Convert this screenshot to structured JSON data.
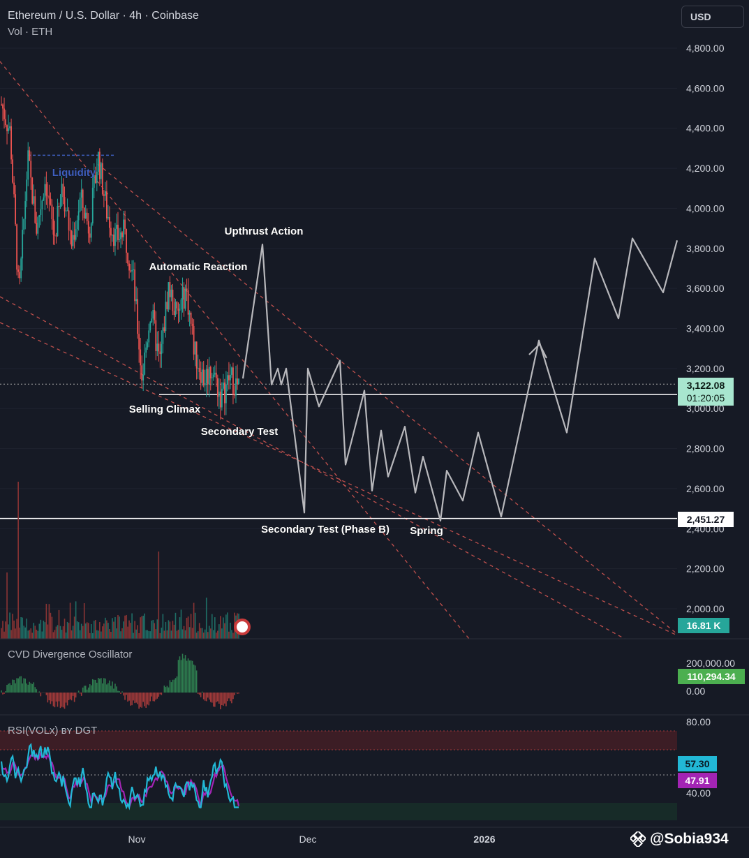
{
  "header": {
    "title": "Ethereum / U.S. Dollar · 4h · Coinbase",
    "subtitle": "Vol · ETH",
    "currency_button": "USD"
  },
  "watermark": {
    "handle": "@Sobia934"
  },
  "colors": {
    "background": "#161a25",
    "up": "#26a69a",
    "down": "#ef5350",
    "projection": "#b8b8bc",
    "channel": "#c0504d",
    "liquidity": "#3f5fbf",
    "rsi_fast": "#22b8d6",
    "rsi_slow": "#a324b4",
    "cvd_label": "#4caf50"
  },
  "chart_data": [
    {
      "type": "candlestick",
      "title": "Ethereum / U.S. Dollar · 4h · Coinbase",
      "ylabel": "USD",
      "ylim": [
        1950,
        4900
      ],
      "y_ticks": [
        2000,
        2200,
        2400,
        2600,
        2800,
        3000,
        3200,
        3400,
        3600,
        3800,
        4000,
        4200,
        4400,
        4600,
        4800
      ],
      "y_tick_labels": [
        "2,000.00",
        "2,200.00",
        "2,400.00",
        "2,600.00",
        "2,800.00",
        "3,000.00",
        "3,200.00",
        "3,400.00",
        "3,600.00",
        "3,800.00",
        "4,000.00",
        "4,200.00",
        "4,400.00",
        "4,600.00",
        "4,800.00"
      ],
      "x_ticks": [
        "Nov",
        "Dec",
        "2026"
      ],
      "price_path": [
        4520,
        4380,
        3550,
        4250,
        3900,
        4150,
        3850,
        4100,
        3820,
        4050,
        3900,
        4260,
        3980,
        3850,
        3880,
        3650,
        3150,
        3500,
        3220,
        3610,
        3450,
        3600,
        3280,
        3150,
        3200,
        3050,
        3160,
        3100
      ],
      "last_price": {
        "value": "3,122.08",
        "countdown": "01:20:05"
      },
      "support_level": {
        "value": 2451.27,
        "label": "2,451.27"
      },
      "range_top_level": 3070,
      "liquidity_level": 4265,
      "projection_path": [
        3150,
        3820,
        3120,
        3200,
        3120,
        3200,
        2480,
        3200,
        3010,
        3240,
        2720,
        3090,
        2590,
        2890,
        2660,
        2910,
        2580,
        2760,
        2440,
        2690,
        2540,
        2880,
        2460,
        3340,
        2880,
        3750,
        3450,
        3850,
        3580,
        3840
      ],
      "annotations": [
        {
          "text": "Liquidity",
          "kind": "liquidity"
        },
        {
          "text": "Upthrust Action"
        },
        {
          "text": "Automatic Reaction"
        },
        {
          "text": "Selling Climax"
        },
        {
          "text": "Secondary Test"
        },
        {
          "text": "Secondary Test (Phase B)"
        },
        {
          "text": "Spring"
        }
      ],
      "volume": {
        "last_label": "16.81 K"
      }
    },
    {
      "type": "bar",
      "title": "CVD Divergence Oscillator",
      "y_ticks": [
        0,
        200000
      ],
      "y_tick_labels": [
        "0.00",
        "200,000.00"
      ],
      "last_value": "110,294.34"
    },
    {
      "type": "line",
      "title": "RSI(VOLx) ʙʏ DGT",
      "y_ticks": [
        40,
        80
      ],
      "y_tick_labels": [
        "40.00",
        "80.00"
      ],
      "series": [
        {
          "name": "",
          "last": "57.30"
        },
        {
          "name": "",
          "last": "47.91"
        }
      ]
    }
  ]
}
